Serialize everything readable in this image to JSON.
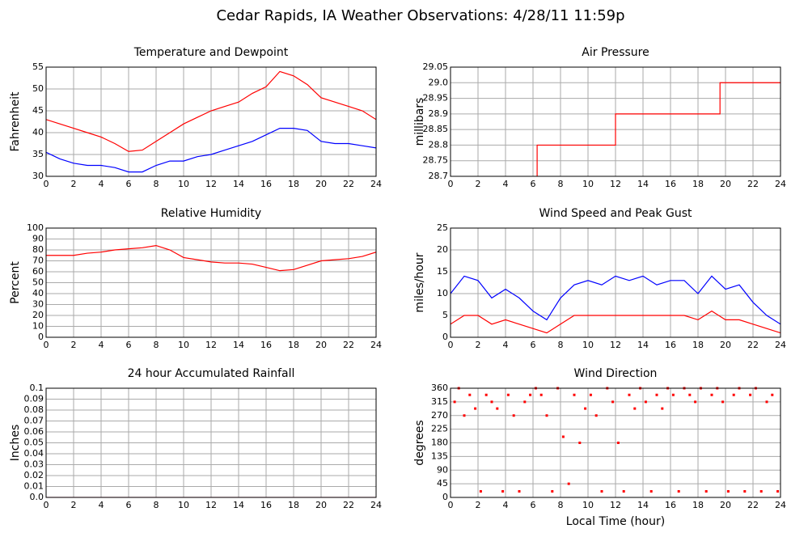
{
  "title": "Cedar Rapids, IA Weather Observations: 4/28/11 11:59p",
  "chart_data": [
    {
      "type": "line",
      "title": "Temperature and Dewpoint",
      "ylabel": "Fahrenheit",
      "x": [
        0,
        1,
        2,
        3,
        4,
        5,
        6,
        7,
        8,
        9,
        10,
        11,
        12,
        13,
        14,
        15,
        16,
        17,
        18,
        19,
        20,
        21,
        22,
        23,
        24
      ],
      "series": [
        {
          "color": "#ff0000",
          "values": [
            43,
            42,
            41,
            40,
            39,
            37.5,
            35.7,
            36,
            38,
            40,
            42,
            43.5,
            45,
            46,
            47,
            49,
            50.5,
            54,
            53,
            51,
            48,
            47,
            46,
            45,
            43
          ]
        },
        {
          "color": "#0000ff",
          "values": [
            35.5,
            34,
            33,
            32.5,
            32.5,
            32,
            31,
            31,
            32.5,
            33.5,
            33.5,
            34.5,
            35,
            36,
            37,
            38,
            39.5,
            41,
            41,
            40.5,
            38,
            37.5,
            37.5,
            37,
            36.5
          ]
        }
      ],
      "xlim": [
        0,
        24
      ],
      "xticks": [
        0,
        2,
        4,
        6,
        8,
        10,
        12,
        14,
        16,
        18,
        20,
        22,
        24
      ],
      "ylim": [
        30,
        55
      ],
      "yticks": [
        30,
        35,
        40,
        45,
        50,
        55
      ],
      "grid": true
    },
    {
      "type": "line",
      "title": "Air Pressure",
      "ylabel": "millibars",
      "series": [
        {
          "color": "#ff0000",
          "x": [
            6.3,
            6.3,
            12,
            12,
            19.6,
            19.6,
            24
          ],
          "values": [
            28.7,
            28.8,
            28.8,
            28.9,
            28.9,
            29,
            29
          ]
        }
      ],
      "xlim": [
        0,
        24
      ],
      "xticks": [
        0,
        2,
        4,
        6,
        8,
        10,
        12,
        14,
        16,
        18,
        20,
        22,
        24
      ],
      "ylim": [
        28.7,
        29.05
      ],
      "yticks": [
        28.7,
        28.75,
        28.8,
        28.85,
        28.9,
        28.95,
        {
          "value": 29,
          "label": "29.0"
        },
        29.05
      ],
      "grid": true
    },
    {
      "type": "line",
      "title": "Relative Humidity",
      "ylabel": "Percent",
      "x": [
        0,
        1,
        2,
        3,
        4,
        5,
        6,
        7,
        8,
        9,
        10,
        11,
        12,
        13,
        14,
        15,
        16,
        17,
        18,
        19,
        20,
        21,
        22,
        23,
        24
      ],
      "series": [
        {
          "color": "#ff0000",
          "values": [
            75,
            75,
            75,
            77,
            78,
            80,
            81,
            82,
            84,
            80,
            73,
            71,
            69,
            68,
            68,
            67,
            64,
            61,
            62,
            66,
            70,
            71,
            72,
            74,
            78
          ]
        }
      ],
      "xlim": [
        0,
        24
      ],
      "xticks": [
        0,
        2,
        4,
        6,
        8,
        10,
        12,
        14,
        16,
        18,
        20,
        22,
        24
      ],
      "ylim": [
        0,
        100
      ],
      "yticks": [
        0,
        10,
        20,
        30,
        40,
        50,
        60,
        70,
        80,
        90,
        100
      ],
      "grid": true
    },
    {
      "type": "line",
      "title": "Wind Speed and Peak Gust",
      "ylabel": "miles/hour",
      "x": [
        0,
        1,
        2,
        3,
        4,
        5,
        6,
        7,
        8,
        9,
        10,
        11,
        12,
        13,
        14,
        15,
        16,
        17,
        18,
        19,
        20,
        21,
        22,
        23,
        24
      ],
      "series": [
        {
          "color": "#0000ff",
          "values": [
            10,
            14,
            13,
            9,
            11,
            9,
            6,
            4,
            9,
            12,
            13,
            12,
            14,
            13,
            14,
            12,
            13,
            13,
            10,
            14,
            11,
            12,
            8,
            5,
            3
          ]
        },
        {
          "color": "#ff0000",
          "values": [
            3,
            5,
            5,
            3,
            4,
            3,
            2,
            1,
            3,
            5,
            5,
            5,
            5,
            5,
            5,
            5,
            5,
            5,
            4,
            6,
            4,
            4,
            3,
            2,
            1
          ]
        }
      ],
      "xlim": [
        0,
        24
      ],
      "xticks": [
        0,
        2,
        4,
        6,
        8,
        10,
        12,
        14,
        16,
        18,
        20,
        22,
        24
      ],
      "ylim": [
        0,
        25
      ],
      "yticks": [
        0,
        5,
        10,
        15,
        20,
        25
      ],
      "grid": true
    },
    {
      "type": "line",
      "title": "24 hour Accumulated Rainfall",
      "ylabel": "Inches",
      "x": [
        0,
        24
      ],
      "series": [
        {
          "color": "#e0608a",
          "values": [
            0,
            0
          ]
        }
      ],
      "xlim": [
        0,
        24
      ],
      "xticks": [
        0,
        2,
        4,
        6,
        8,
        10,
        12,
        14,
        16,
        18,
        20,
        22,
        24
      ],
      "ylim": [
        0,
        0.1
      ],
      "yticks": [
        {
          "value": 0,
          "label": "0.0"
        },
        0.01,
        0.02,
        0.03,
        0.04,
        0.05,
        0.06,
        0.07,
        0.08,
        0.09,
        0.1
      ],
      "grid": true
    },
    {
      "type": "scatter",
      "title": "Wind Direction",
      "ylabel": "degrees",
      "xlabel": "Local Time (hour)",
      "color": "#ff0000",
      "x": [
        0.3,
        0.6,
        1,
        1.4,
        1.8,
        2.2,
        2.6,
        3,
        3.4,
        3.8,
        4.2,
        4.6,
        5,
        5.4,
        5.8,
        6.2,
        6.6,
        7,
        7.4,
        7.8,
        8.2,
        8.6,
        9,
        9.4,
        9.8,
        10.2,
        10.6,
        11,
        11.4,
        11.8,
        12.2,
        12.6,
        13,
        13.4,
        13.8,
        14.2,
        14.6,
        15,
        15.4,
        15.8,
        16.2,
        16.6,
        17,
        17.4,
        17.8,
        18.2,
        18.6,
        19,
        19.4,
        19.8,
        20.2,
        20.6,
        21,
        21.4,
        21.8,
        22.2,
        22.6,
        23,
        23.4,
        23.8
      ],
      "values": [
        315,
        360,
        270,
        338,
        293,
        20,
        338,
        315,
        293,
        20,
        338,
        270,
        20,
        315,
        338,
        360,
        338,
        270,
        20,
        360,
        200,
        45,
        338,
        180,
        293,
        338,
        270,
        20,
        360,
        315,
        180,
        20,
        338,
        293,
        360,
        315,
        20,
        338,
        293,
        360,
        338,
        20,
        360,
        338,
        315,
        360,
        20,
        338,
        360,
        315,
        20,
        338,
        360,
        20,
        338,
        360,
        20,
        315,
        338,
        20
      ],
      "xlim": [
        0,
        24
      ],
      "xticks": [
        0,
        2,
        4,
        6,
        8,
        10,
        12,
        14,
        16,
        18,
        20,
        22,
        24
      ],
      "ylim": [
        0,
        360
      ],
      "yticks": [
        0,
        45,
        90,
        135,
        180,
        225,
        270,
        315,
        360
      ],
      "grid": true
    }
  ]
}
